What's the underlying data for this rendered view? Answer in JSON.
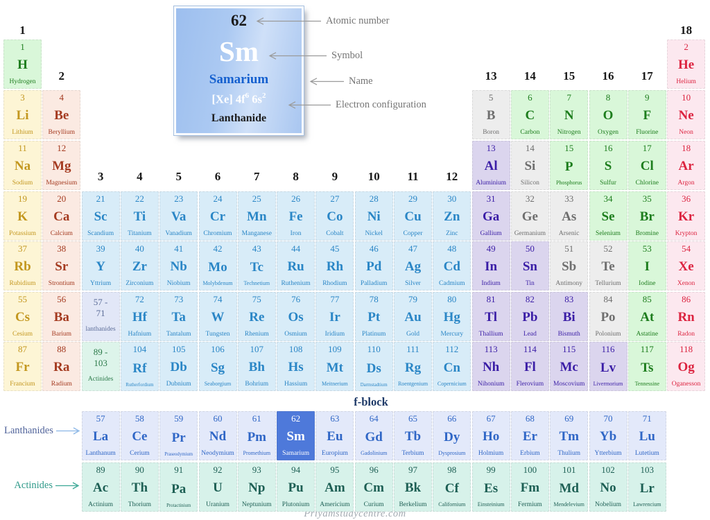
{
  "card": {
    "atomic_number": "62",
    "symbol": "Sm",
    "name": "Samarium",
    "config_p1": "[Xe] 4f",
    "config_sup1": "6",
    "config_p2": " 6s",
    "config_sup2": "2",
    "category": "Lanthanide"
  },
  "annotations": {
    "atomic_number": "Atomic number",
    "symbol": "Symbol",
    "name": "Name",
    "electron_configuration": "Electron configuration"
  },
  "labels": {
    "f_block": "f-block",
    "lanthanides": "Lanthanides",
    "actinides": "Actinides",
    "watermark": "Priyamstudycentre.com"
  },
  "colors": {
    "annotation_arrow": "#9a9a9a",
    "lanthanides_label": "#50639a",
    "actinides_label": "#2f9a8a",
    "lanthanides_arrow": "#8ab6e6",
    "actinides_arrow": "#3aa795",
    "f_block_label": "#1e3a68",
    "card_name_blue": "#1560cf",
    "highlight_blue": "#4e79da"
  },
  "categories": {
    "alkali": {
      "bg": "#fdf5d5",
      "fg": "#c3971f"
    },
    "alkaline": {
      "bg": "#fbeae2",
      "fg": "#a43a20"
    },
    "transition": {
      "bg": "#d8ecf8",
      "fg": "#2a86c6"
    },
    "post": {
      "bg": "#dbd5ee",
      "fg": "#3a1da6"
    },
    "metalloid": {
      "bg": "#ededed",
      "fg": "#6e6e6e"
    },
    "nonmetal": {
      "bg": "#d9f7d9",
      "fg": "#1d7d1d"
    },
    "noble": {
      "bg": "#fce8ef",
      "fg": "#dc2440"
    },
    "lan": {
      "bg": "#e3e9fa",
      "fg": "#2f66c6"
    },
    "act": {
      "bg": "#d7f2ea",
      "fg": "#1d5f54"
    },
    "lanph": {
      "bg": "#e2e7f7",
      "fg": "#5c6d99"
    },
    "actph": {
      "bg": "#ddf4ea",
      "fg": "#2c7a4a"
    },
    "highlight": {
      "bg": "#4e79da",
      "fg": "#ffffff"
    }
  },
  "group_headers": [
    {
      "t": "1",
      "c": 1,
      "band": "1"
    },
    {
      "t": "18",
      "c": 18,
      "band": "1"
    },
    {
      "t": "2",
      "c": 2,
      "band": "2"
    },
    {
      "t": "13",
      "c": 13,
      "band": "2"
    },
    {
      "t": "14",
      "c": 14,
      "band": "2"
    },
    {
      "t": "15",
      "c": 15,
      "band": "2"
    },
    {
      "t": "16",
      "c": 16,
      "band": "2"
    },
    {
      "t": "17",
      "c": 17,
      "band": "2"
    },
    {
      "t": "3",
      "c": 3,
      "band": "3"
    },
    {
      "t": "4",
      "c": 4,
      "band": "3"
    },
    {
      "t": "5",
      "c": 5,
      "band": "3"
    },
    {
      "t": "6",
      "c": 6,
      "band": "3"
    },
    {
      "t": "7",
      "c": 7,
      "band": "3"
    },
    {
      "t": "8",
      "c": 8,
      "band": "3"
    },
    {
      "t": "9",
      "c": 9,
      "band": "3"
    },
    {
      "t": "10",
      "c": 10,
      "band": "3"
    },
    {
      "t": "11",
      "c": 11,
      "band": "3"
    },
    {
      "t": "12",
      "c": 12,
      "band": "3"
    }
  ],
  "range_cells": [
    {
      "l1": "57 -",
      "l2": "71",
      "l3": "lanthanides",
      "c": 3,
      "r": "6",
      "cat": "lanph",
      "name": "lanthanide-range-cell"
    },
    {
      "l1": "89 -",
      "l2": "103",
      "l3": "Actinides",
      "c": 3,
      "r": "7",
      "cat": "actph",
      "name": "actinide-range-cell"
    }
  ],
  "elements": [
    {
      "n": 1,
      "s": "H",
      "nm": "Hydrogen",
      "c": 1,
      "r": "1",
      "cat": "nonmetal"
    },
    {
      "n": 2,
      "s": "He",
      "nm": "Helium",
      "c": 18,
      "r": "1",
      "cat": "noble"
    },
    {
      "n": 3,
      "s": "Li",
      "nm": "Lithium",
      "c": 1,
      "r": "2",
      "cat": "alkali"
    },
    {
      "n": 4,
      "s": "Be",
      "nm": "Beryllium",
      "c": 2,
      "r": "2",
      "cat": "alkaline"
    },
    {
      "n": 5,
      "s": "B",
      "nm": "Boron",
      "c": 13,
      "r": "2",
      "cat": "metalloid"
    },
    {
      "n": 6,
      "s": "C",
      "nm": "Carbon",
      "c": 14,
      "r": "2",
      "cat": "nonmetal"
    },
    {
      "n": 7,
      "s": "N",
      "nm": "Nitrogen",
      "c": 15,
      "r": "2",
      "cat": "nonmetal"
    },
    {
      "n": 8,
      "s": "O",
      "nm": "Oxygen",
      "c": 16,
      "r": "2",
      "cat": "nonmetal"
    },
    {
      "n": 9,
      "s": "F",
      "nm": "Fluorine",
      "c": 17,
      "r": "2",
      "cat": "nonmetal"
    },
    {
      "n": 10,
      "s": "Ne",
      "nm": "Neon",
      "c": 18,
      "r": "2",
      "cat": "noble"
    },
    {
      "n": 11,
      "s": "Na",
      "nm": "Sodium",
      "c": 1,
      "r": "3",
      "cat": "alkali"
    },
    {
      "n": 12,
      "s": "Mg",
      "nm": "Magnesium",
      "c": 2,
      "r": "3",
      "cat": "alkaline"
    },
    {
      "n": 13,
      "s": "Al",
      "nm": "Aluminium",
      "c": 13,
      "r": "3",
      "cat": "post"
    },
    {
      "n": 14,
      "s": "Si",
      "nm": "Silicon",
      "c": 14,
      "r": "3",
      "cat": "metalloid"
    },
    {
      "n": 15,
      "s": "P",
      "nm": "Phosphorus",
      "c": 15,
      "r": "3",
      "cat": "nonmetal"
    },
    {
      "n": 16,
      "s": "S",
      "nm": "Sulfur",
      "c": 16,
      "r": "3",
      "cat": "nonmetal"
    },
    {
      "n": 17,
      "s": "Cl",
      "nm": "Chlorine",
      "c": 17,
      "r": "3",
      "cat": "nonmetal"
    },
    {
      "n": 18,
      "s": "Ar",
      "nm": "Argon",
      "c": 18,
      "r": "3",
      "cat": "noble"
    },
    {
      "n": 19,
      "s": "K",
      "nm": "Potassium",
      "c": 1,
      "r": "4",
      "cat": "alkali"
    },
    {
      "n": 20,
      "s": "Ca",
      "nm": "Calcium",
      "c": 2,
      "r": "4",
      "cat": "alkaline"
    },
    {
      "n": 21,
      "s": "Sc",
      "nm": "Scandium",
      "c": 3,
      "r": "4",
      "cat": "transition"
    },
    {
      "n": 22,
      "s": "Ti",
      "nm": "Titanium",
      "c": 4,
      "r": "4",
      "cat": "transition"
    },
    {
      "n": 23,
      "s": "Va",
      "nm": "Vanadium",
      "c": 5,
      "r": "4",
      "cat": "transition"
    },
    {
      "n": 24,
      "s": "Cr",
      "nm": "Chromium",
      "c": 6,
      "r": "4",
      "cat": "transition"
    },
    {
      "n": 25,
      "s": "Mn",
      "nm": "Manganese",
      "c": 7,
      "r": "4",
      "cat": "transition"
    },
    {
      "n": 26,
      "s": "Fe",
      "nm": "Iron",
      "c": 8,
      "r": "4",
      "cat": "transition"
    },
    {
      "n": 27,
      "s": "Co",
      "nm": "Cobalt",
      "c": 9,
      "r": "4",
      "cat": "transition"
    },
    {
      "n": 28,
      "s": "Ni",
      "nm": "Nickel",
      "c": 10,
      "r": "4",
      "cat": "transition"
    },
    {
      "n": 29,
      "s": "Cu",
      "nm": "Copper",
      "c": 11,
      "r": "4",
      "cat": "transition"
    },
    {
      "n": 30,
      "s": "Zn",
      "nm": "Zinc",
      "c": 12,
      "r": "4",
      "cat": "transition"
    },
    {
      "n": 31,
      "s": "Ga",
      "nm": "Gallium",
      "c": 13,
      "r": "4",
      "cat": "post"
    },
    {
      "n": 32,
      "s": "Ge",
      "nm": "Germanium",
      "c": 14,
      "r": "4",
      "cat": "metalloid"
    },
    {
      "n": 33,
      "s": "As",
      "nm": "Arsenic",
      "c": 15,
      "r": "4",
      "cat": "metalloid"
    },
    {
      "n": 34,
      "s": "Se",
      "nm": "Selenium",
      "c": 16,
      "r": "4",
      "cat": "nonmetal"
    },
    {
      "n": 35,
      "s": "Br",
      "nm": "Bromine",
      "c": 17,
      "r": "4",
      "cat": "nonmetal"
    },
    {
      "n": 36,
      "s": "Kr",
      "nm": "Krypton",
      "c": 18,
      "r": "4",
      "cat": "noble"
    },
    {
      "n": 37,
      "s": "Rb",
      "nm": "Rubidium",
      "c": 1,
      "r": "5",
      "cat": "alkali"
    },
    {
      "n": 38,
      "s": "Sr",
      "nm": "Strontium",
      "c": 2,
      "r": "5",
      "cat": "alkaline"
    },
    {
      "n": 39,
      "s": "Y",
      "nm": "Yttrium",
      "c": 3,
      "r": "5",
      "cat": "transition"
    },
    {
      "n": 40,
      "s": "Zr",
      "nm": "Zirconium",
      "c": 4,
      "r": "5",
      "cat": "transition"
    },
    {
      "n": 41,
      "s": "Nb",
      "nm": "Niobium",
      "c": 5,
      "r": "5",
      "cat": "transition"
    },
    {
      "n": 42,
      "s": "Mo",
      "nm": "Molybdenum",
      "c": 6,
      "r": "5",
      "cat": "transition"
    },
    {
      "n": 43,
      "s": "Tc",
      "nm": "Technetium",
      "c": 7,
      "r": "5",
      "cat": "transition"
    },
    {
      "n": 44,
      "s": "Ru",
      "nm": "Ruthenium",
      "c": 8,
      "r": "5",
      "cat": "transition"
    },
    {
      "n": 45,
      "s": "Rh",
      "nm": "Rhodium",
      "c": 9,
      "r": "5",
      "cat": "transition"
    },
    {
      "n": 46,
      "s": "Pd",
      "nm": "Palladium",
      "c": 10,
      "r": "5",
      "cat": "transition"
    },
    {
      "n": 47,
      "s": "Ag",
      "nm": "Silver",
      "c": 11,
      "r": "5",
      "cat": "transition"
    },
    {
      "n": 48,
      "s": "Cd",
      "nm": "Cadmium",
      "c": 12,
      "r": "5",
      "cat": "transition"
    },
    {
      "n": 49,
      "s": "In",
      "nm": "Indium",
      "c": 13,
      "r": "5",
      "cat": "post"
    },
    {
      "n": 50,
      "s": "Sn",
      "nm": "Tin",
      "c": 14,
      "r": "5",
      "cat": "post"
    },
    {
      "n": 51,
      "s": "Sb",
      "nm": "Antimony",
      "c": 15,
      "r": "5",
      "cat": "metalloid"
    },
    {
      "n": 52,
      "s": "Te",
      "nm": "Tellurium",
      "c": 16,
      "r": "5",
      "cat": "metalloid"
    },
    {
      "n": 53,
      "s": "I",
      "nm": "Iodine",
      "c": 17,
      "r": "5",
      "cat": "nonmetal"
    },
    {
      "n": 54,
      "s": "Xe",
      "nm": "Xenon",
      "c": 18,
      "r": "5",
      "cat": "noble"
    },
    {
      "n": 55,
      "s": "Cs",
      "nm": "Cesium",
      "c": 1,
      "r": "6",
      "cat": "alkali"
    },
    {
      "n": 56,
      "s": "Ba",
      "nm": "Barium",
      "c": 2,
      "r": "6",
      "cat": "alkaline"
    },
    {
      "n": 72,
      "s": "Hf",
      "nm": "Hafnium",
      "c": 4,
      "r": "6",
      "cat": "transition"
    },
    {
      "n": 73,
      "s": "Ta",
      "nm": "Tantalum",
      "c": 5,
      "r": "6",
      "cat": "transition"
    },
    {
      "n": 74,
      "s": "W",
      "nm": "Tungsten",
      "c": 6,
      "r": "6",
      "cat": "transition"
    },
    {
      "n": 75,
      "s": "Re",
      "nm": "Rhenium",
      "c": 7,
      "r": "6",
      "cat": "transition"
    },
    {
      "n": 76,
      "s": "Os",
      "nm": "Osmium",
      "c": 8,
      "r": "6",
      "cat": "transition"
    },
    {
      "n": 77,
      "s": "Ir",
      "nm": "Iridium",
      "c": 9,
      "r": "6",
      "cat": "transition"
    },
    {
      "n": 78,
      "s": "Pt",
      "nm": "Platinum",
      "c": 10,
      "r": "6",
      "cat": "transition"
    },
    {
      "n": 79,
      "s": "Au",
      "nm": "Gold",
      "c": 11,
      "r": "6",
      "cat": "transition"
    },
    {
      "n": 80,
      "s": "Hg",
      "nm": "Mercury",
      "c": 12,
      "r": "6",
      "cat": "transition"
    },
    {
      "n": 81,
      "s": "Tl",
      "nm": "Thallium",
      "c": 13,
      "r": "6",
      "cat": "post"
    },
    {
      "n": 82,
      "s": "Pb",
      "nm": "Lead",
      "c": 14,
      "r": "6",
      "cat": "post"
    },
    {
      "n": 83,
      "s": "Bi",
      "nm": "Bismuth",
      "c": 15,
      "r": "6",
      "cat": "post"
    },
    {
      "n": 84,
      "s": "Po",
      "nm": "Polonium",
      "c": 16,
      "r": "6",
      "cat": "metalloid"
    },
    {
      "n": 85,
      "s": "At",
      "nm": "Astatine",
      "c": 17,
      "r": "6",
      "cat": "nonmetal"
    },
    {
      "n": 86,
      "s": "Rn",
      "nm": "Radon",
      "c": 18,
      "r": "6",
      "cat": "noble"
    },
    {
      "n": 87,
      "s": "Fr",
      "nm": "Francium",
      "c": 1,
      "r": "7",
      "cat": "alkali"
    },
    {
      "n": 88,
      "s": "Ra",
      "nm": "Radium",
      "c": 2,
      "r": "7",
      "cat": "alkaline"
    },
    {
      "n": 104,
      "s": "Rf",
      "nm": "Rutherfordium",
      "c": 4,
      "r": "7",
      "cat": "transition"
    },
    {
      "n": 105,
      "s": "Db",
      "nm": "Dubnium",
      "c": 5,
      "r": "7",
      "cat": "transition"
    },
    {
      "n": 106,
      "s": "Sg",
      "nm": "Seaborgium",
      "c": 6,
      "r": "7",
      "cat": "transition"
    },
    {
      "n": 107,
      "s": "Bh",
      "nm": "Bohrium",
      "c": 7,
      "r": "7",
      "cat": "transition"
    },
    {
      "n": 108,
      "s": "Hs",
      "nm": "Hassium",
      "c": 8,
      "r": "7",
      "cat": "transition"
    },
    {
      "n": 109,
      "s": "Mt",
      "nm": "Meitnerium",
      "c": 9,
      "r": "7",
      "cat": "transition"
    },
    {
      "n": 110,
      "s": "Ds",
      "nm": "Darmstadtium",
      "c": 10,
      "r": "7",
      "cat": "transition"
    },
    {
      "n": 111,
      "s": "Rg",
      "nm": "Roentgenium",
      "c": 11,
      "r": "7",
      "cat": "transition"
    },
    {
      "n": 112,
      "s": "Cn",
      "nm": "Copernicium",
      "c": 12,
      "r": "7",
      "cat": "transition"
    },
    {
      "n": 113,
      "s": "Nh",
      "nm": "Nihonium",
      "c": 13,
      "r": "7",
      "cat": "post"
    },
    {
      "n": 114,
      "s": "Fl",
      "nm": "Flerovium",
      "c": 14,
      "r": "7",
      "cat": "post"
    },
    {
      "n": 115,
      "s": "Mc",
      "nm": "Moscovium",
      "c": 15,
      "r": "7",
      "cat": "post"
    },
    {
      "n": 116,
      "s": "Lv",
      "nm": "Livermorium",
      "c": 16,
      "r": "7",
      "cat": "post"
    },
    {
      "n": 117,
      "s": "Ts",
      "nm": "Tennessine",
      "c": 17,
      "r": "7",
      "cat": "nonmetal"
    },
    {
      "n": 118,
      "s": "Og",
      "nm": "Oganesson",
      "c": 18,
      "r": "7",
      "cat": "noble"
    },
    {
      "n": 57,
      "s": "La",
      "nm": "Lanthanum",
      "c": 3,
      "r": "L",
      "cat": "lan"
    },
    {
      "n": 58,
      "s": "Ce",
      "nm": "Cerium",
      "c": 4,
      "r": "L",
      "cat": "lan"
    },
    {
      "n": 59,
      "s": "Pr",
      "nm": "Praseodymium",
      "c": 5,
      "r": "L",
      "cat": "lan"
    },
    {
      "n": 60,
      "s": "Nd",
      "nm": "Neodymium",
      "c": 6,
      "r": "L",
      "cat": "lan"
    },
    {
      "n": 61,
      "s": "Pm",
      "nm": "Promethium",
      "c": 7,
      "r": "L",
      "cat": "lan"
    },
    {
      "n": 62,
      "s": "Sm",
      "nm": "Samarium",
      "c": 8,
      "r": "L",
      "cat": "highlight"
    },
    {
      "n": 63,
      "s": "Eu",
      "nm": "Europium",
      "c": 9,
      "r": "L",
      "cat": "lan"
    },
    {
      "n": 64,
      "s": "Gd",
      "nm": "Gadolinium",
      "c": 10,
      "r": "L",
      "cat": "lan"
    },
    {
      "n": 65,
      "s": "Tb",
      "nm": "Terbium",
      "c": 11,
      "r": "L",
      "cat": "lan"
    },
    {
      "n": 66,
      "s": "Dy",
      "nm": "Dysprosium",
      "c": 12,
      "r": "L",
      "cat": "lan"
    },
    {
      "n": 67,
      "s": "Ho",
      "nm": "Holmium",
      "c": 13,
      "r": "L",
      "cat": "lan"
    },
    {
      "n": 68,
      "s": "Er",
      "nm": "Erbium",
      "c": 14,
      "r": "L",
      "cat": "lan"
    },
    {
      "n": 69,
      "s": "Tm",
      "nm": "Thulium",
      "c": 15,
      "r": "L",
      "cat": "lan"
    },
    {
      "n": 70,
      "s": "Yb",
      "nm": "Ytterbium",
      "c": 16,
      "r": "L",
      "cat": "lan"
    },
    {
      "n": 71,
      "s": "Lu",
      "nm": "Lutetium",
      "c": 17,
      "r": "L",
      "cat": "lan"
    },
    {
      "n": 89,
      "s": "Ac",
      "nm": "Actinium",
      "c": 3,
      "r": "A",
      "cat": "act"
    },
    {
      "n": 90,
      "s": "Th",
      "nm": "Thorium",
      "c": 4,
      "r": "A",
      "cat": "act"
    },
    {
      "n": 91,
      "s": "Pa",
      "nm": "Protactinium",
      "c": 5,
      "r": "A",
      "cat": "act"
    },
    {
      "n": 92,
      "s": "U",
      "nm": "Uranium",
      "c": 6,
      "r": "A",
      "cat": "act"
    },
    {
      "n": 93,
      "s": "Np",
      "nm": "Neptunium",
      "c": 7,
      "r": "A",
      "cat": "act"
    },
    {
      "n": 94,
      "s": "Pu",
      "nm": "Plutonium",
      "c": 8,
      "r": "A",
      "cat": "act"
    },
    {
      "n": 95,
      "s": "Am",
      "nm": "Americium",
      "c": 9,
      "r": "A",
      "cat": "act"
    },
    {
      "n": 96,
      "s": "Cm",
      "nm": "Curium",
      "c": 10,
      "r": "A",
      "cat": "act"
    },
    {
      "n": 97,
      "s": "Bk",
      "nm": "Berkelium",
      "c": 11,
      "r": "A",
      "cat": "act"
    },
    {
      "n": 98,
      "s": "Cf",
      "nm": "Californium",
      "c": 12,
      "r": "A",
      "cat": "act"
    },
    {
      "n": 99,
      "s": "Es",
      "nm": "Einsteinium",
      "c": 13,
      "r": "A",
      "cat": "act"
    },
    {
      "n": 100,
      "s": "Fm",
      "nm": "Fermium",
      "c": 14,
      "r": "A",
      "cat": "act"
    },
    {
      "n": 101,
      "s": "Md",
      "nm": "Mendelevium",
      "c": 15,
      "r": "A",
      "cat": "act"
    },
    {
      "n": 102,
      "s": "No",
      "nm": "Nobelium",
      "c": 16,
      "r": "A",
      "cat": "act"
    },
    {
      "n": 103,
      "s": "Lr",
      "nm": "Lawrencium",
      "c": 17,
      "r": "A",
      "cat": "act"
    }
  ]
}
